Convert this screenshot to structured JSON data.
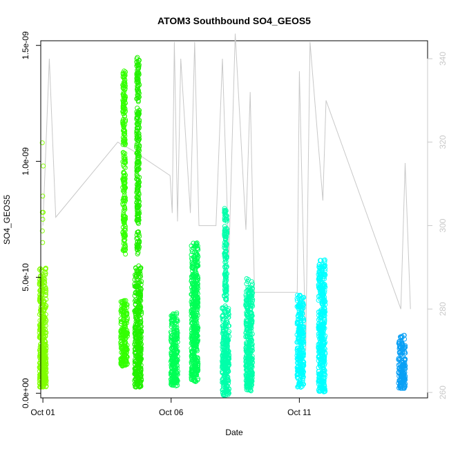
{
  "chart_data": {
    "type": "scatter",
    "title": "ATOM3 Southbound SO4_GEOS5",
    "xlabel": "Date",
    "ylabel": "SO4_GEOS5",
    "x_axis": {
      "type": "date",
      "range": [
        "2017-09-30T22:00",
        "2017-10-16T00:00"
      ],
      "ticks": [
        "Oct 01",
        "Oct 06",
        "Oct 11"
      ]
    },
    "y_axis": {
      "range": [
        -2e-11,
        1.52e-09
      ],
      "ticks": [
        "0.0e+00",
        "5.0e-10",
        "1.0e-09",
        "1.5e-09"
      ]
    },
    "y2_axis": {
      "range": [
        258.7,
        344.3
      ],
      "ticks": [
        "260",
        "280",
        "300",
        "320",
        "340"
      ],
      "color": "#c8c8c8"
    },
    "grid": false,
    "legend": "none",
    "marker": "open-circle",
    "series": [
      {
        "color": "#80ff00",
        "points": [
          {
            "x": "2017-10-01T00:00",
            "y_min": 2.5e-11,
            "y_max": 5.4e-10,
            "outliers": [
              1.08e-09,
              9.8e-10,
              8.5e-10,
              7.8e-10,
              7.8e-10,
              7.5e-10,
              7e-10,
              6.5e-10
            ]
          }
        ]
      },
      {
        "color": "#33ff00",
        "points": [
          {
            "x": "2017-10-04T04:00",
            "y_min": 1.15e-10,
            "y_max": 4e-10,
            "upper": [
              6e-10,
              1.39e-09
            ]
          }
        ]
      },
      {
        "color": "#22f000",
        "points": [
          {
            "x": "2017-10-04T17:00",
            "y_min": 2.5e-11,
            "y_max": 5.5e-10,
            "upper": [
              6e-10,
              1.45e-09
            ]
          }
        ]
      },
      {
        "color": "#00ff55",
        "points": [
          {
            "x": "2017-10-06T03:00",
            "y_min": 3e-11,
            "y_max": 3.5e-10
          },
          {
            "x": "2017-10-06T22:00",
            "y_min": 5e-11,
            "y_max": 6.5e-10
          }
        ]
      },
      {
        "color": "#00ffaa",
        "points": [
          {
            "x": "2017-10-08T03:00",
            "y_min": -1e-11,
            "y_max": 3.8e-10,
            "upper": [
              4e-10,
              8e-10
            ]
          },
          {
            "x": "2017-10-09T01:00",
            "y_min": 1e-11,
            "y_max": 5e-10
          }
        ]
      },
      {
        "color": "#00ffff",
        "points": [
          {
            "x": "2017-10-11T01:00",
            "y_min": 2.5e-11,
            "y_max": 4.3e-10
          },
          {
            "x": "2017-10-11T21:00",
            "y_min": 5e-12,
            "y_max": 5.8e-10
          }
        ]
      },
      {
        "color": "#0aa0f5",
        "points": [
          {
            "x": "2017-10-15T00:00",
            "y_min": 2e-11,
            "y_max": 2.5e-10
          }
        ]
      }
    ],
    "secondary_line": {
      "name": "",
      "color": "#c8c8c8",
      "x": [
        "2017-10-01T00:00",
        "2017-10-01T06:00",
        "2017-10-01T12:00",
        "2017-10-03T22:00",
        "2017-10-04T12:00",
        "2017-10-05T23:00",
        "2017-10-06T01:00",
        "2017-10-06T03:00",
        "2017-10-06T06:00",
        "2017-10-06T09:00",
        "2017-10-06T18:00",
        "2017-10-06T22:00",
        "2017-10-07T02:00",
        "2017-10-07T18:00",
        "2017-10-08T00:00",
        "2017-10-08T06:00",
        "2017-10-08T12:00",
        "2017-10-08T22:00",
        "2017-10-09T02:00",
        "2017-10-09T06:00",
        "2017-10-10T22:00",
        "2017-10-11T00:00",
        "2017-10-11T06:00",
        "2017-10-11T10:00",
        "2017-10-11T22:00",
        "2017-10-12T01:00",
        "2017-10-14T23:00",
        "2017-10-15T03:00",
        "2017-10-15T08:00"
      ],
      "y": [
        300,
        340,
        302,
        320,
        318,
        312,
        303,
        344,
        301,
        340,
        303,
        344,
        300,
        300,
        340,
        292,
        346,
        299,
        332,
        284,
        284,
        337,
        270,
        344,
        306,
        330,
        280,
        315,
        280
      ]
    }
  }
}
